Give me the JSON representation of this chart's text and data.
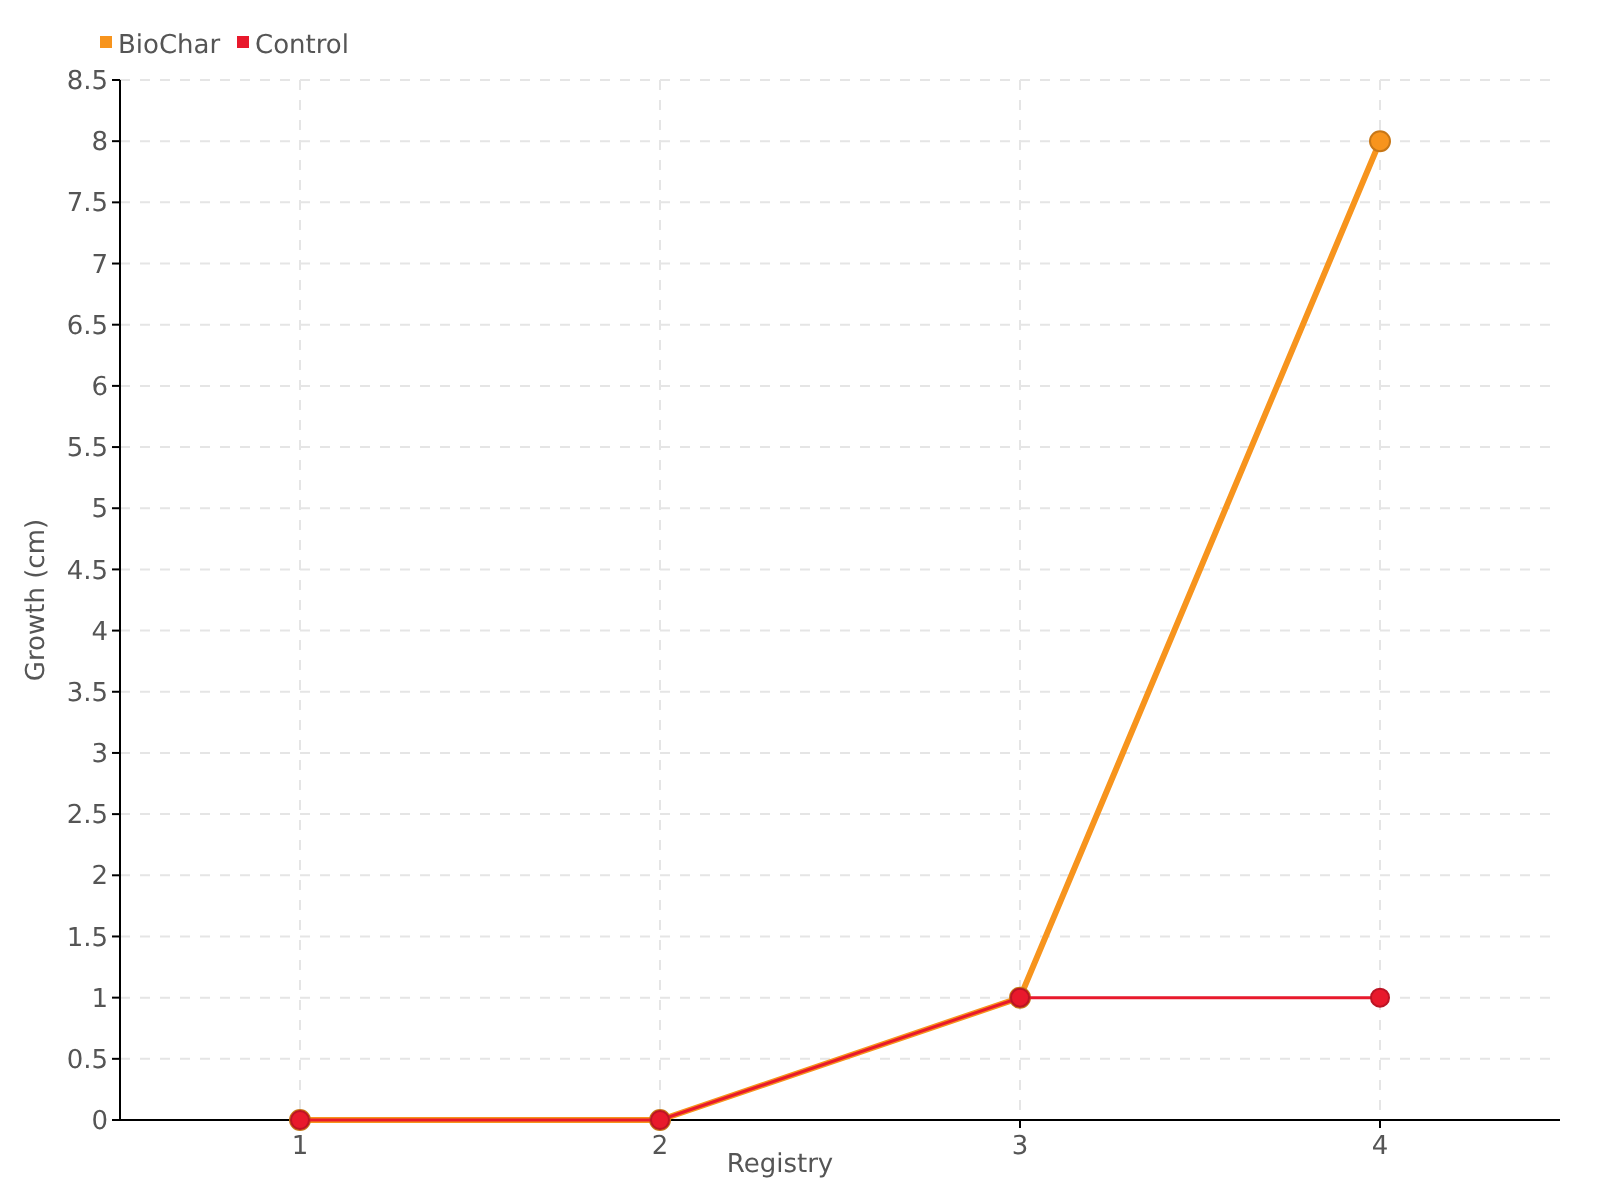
{
  "chart_data": {
    "type": "line",
    "xlabel": "Registry",
    "ylabel": "Growth (cm)",
    "categories": [
      "1",
      "2",
      "3",
      "4"
    ],
    "series": [
      {
        "name": "BioChar",
        "color": "#f7941d",
        "values": [
          0,
          0,
          1,
          8
        ]
      },
      {
        "name": "Control",
        "color": "#e8192c",
        "values": [
          0,
          0,
          1,
          1
        ]
      }
    ],
    "ylim": [
      0,
      8.5
    ],
    "yticks": [
      0,
      0.5,
      1,
      1.5,
      2,
      2.5,
      3,
      3.5,
      4,
      4.5,
      5,
      5.5,
      6,
      6.5,
      7,
      7.5,
      8,
      8.5
    ],
    "grid": true,
    "legend": "top left",
    "marker": "circle",
    "line_style": "solid"
  }
}
